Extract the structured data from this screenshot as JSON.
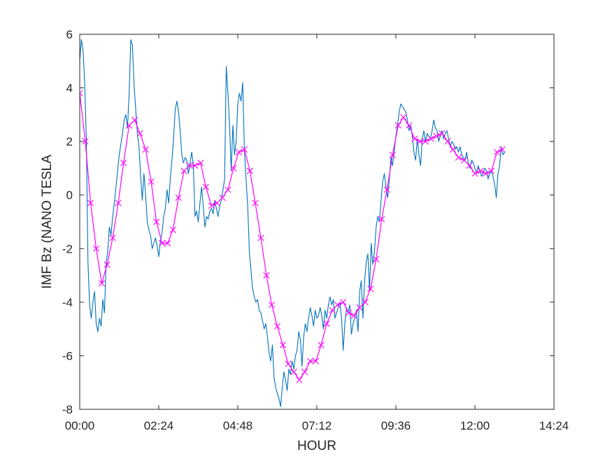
{
  "chart_data": {
    "type": "line",
    "xlabel": "HOUR",
    "ylabel": "IMF Bz (NANO TESLA",
    "x_ticks": [
      "00:00",
      "02:24",
      "04:48",
      "07:12",
      "09:36",
      "12:00",
      "14:24"
    ],
    "y_ticks": [
      "6",
      "4",
      "2",
      "0",
      "-2",
      "-4",
      "-6",
      "-8"
    ],
    "xlim_hours": [
      0,
      14.4
    ],
    "ylim": [
      -8,
      6
    ],
    "grid": false,
    "series": [
      {
        "color": "#0072BD",
        "marker": "none",
        "x_hours": [
          0.0,
          0.05,
          0.1,
          0.15,
          0.2,
          0.25,
          0.3,
          0.35,
          0.4,
          0.45,
          0.5,
          0.55,
          0.6,
          0.65,
          0.7,
          0.75,
          0.8,
          0.85,
          0.9,
          0.95,
          1.0,
          1.05,
          1.1,
          1.15,
          1.2,
          1.25,
          1.3,
          1.35,
          1.4,
          1.45,
          1.5,
          1.55,
          1.6,
          1.65,
          1.7,
          1.75,
          1.8,
          1.85,
          1.9,
          1.95,
          2.0,
          2.05,
          2.1,
          2.15,
          2.2,
          2.25,
          2.3,
          2.35,
          2.4,
          2.45,
          2.5,
          2.55,
          2.6,
          2.65,
          2.7,
          2.75,
          2.8,
          2.85,
          2.9,
          2.95,
          3.0,
          3.05,
          3.1,
          3.15,
          3.2,
          3.25,
          3.3,
          3.35,
          3.4,
          3.45,
          3.5,
          3.55,
          3.6,
          3.65,
          3.7,
          3.75,
          3.8,
          3.85,
          3.9,
          3.95,
          4.0,
          4.05,
          4.1,
          4.15,
          4.2,
          4.25,
          4.3,
          4.35,
          4.4,
          4.45,
          4.5,
          4.55,
          4.6,
          4.65,
          4.7,
          4.75,
          4.8,
          4.85,
          4.9,
          4.95,
          5.0,
          5.05,
          5.1,
          5.15,
          5.2,
          5.25,
          5.3,
          5.35,
          5.4,
          5.45,
          5.5,
          5.55,
          5.6,
          5.65,
          5.7,
          5.75,
          5.8,
          5.85,
          5.9,
          5.95,
          6.0,
          6.05,
          6.1,
          6.15,
          6.2,
          6.25,
          6.3,
          6.35,
          6.4,
          6.45,
          6.5,
          6.55,
          6.6,
          6.65,
          6.7,
          6.75,
          6.8,
          6.85,
          6.9,
          6.95,
          7.0,
          7.05,
          7.1,
          7.15,
          7.2,
          7.25,
          7.3,
          7.35,
          7.4,
          7.45,
          7.5,
          7.55,
          7.6,
          7.65,
          7.7,
          7.75,
          7.8,
          7.85,
          7.9,
          7.95,
          8.0,
          8.05,
          8.1,
          8.15,
          8.2,
          8.25,
          8.3,
          8.35,
          8.4,
          8.45,
          8.5,
          8.55,
          8.6,
          8.65,
          8.7,
          8.75,
          8.8,
          8.85,
          8.9,
          8.95,
          9.0,
          9.05,
          9.1,
          9.15,
          9.2,
          9.25,
          9.3,
          9.35,
          9.4,
          9.45,
          9.5,
          9.55,
          9.6,
          9.65,
          9.7,
          9.75,
          9.8,
          9.85,
          9.9,
          9.95,
          10.0,
          10.05,
          10.1,
          10.15,
          10.2,
          10.25,
          10.3,
          10.35,
          10.4,
          10.45,
          10.5,
          10.55,
          10.6,
          10.65,
          10.7,
          10.75,
          10.8,
          10.85,
          10.9,
          10.95,
          11.0,
          11.05,
          11.1,
          11.15,
          11.2,
          11.25,
          11.3,
          11.35,
          11.4,
          11.45,
          11.5,
          11.55,
          11.6,
          11.65,
          11.7,
          11.75,
          11.8,
          11.85,
          11.9,
          11.95,
          12.0,
          12.05,
          12.1,
          12.15,
          12.2,
          12.25,
          12.3,
          12.35,
          12.4,
          12.45,
          12.5,
          12.55,
          12.6,
          12.65,
          12.7,
          12.75,
          12.8,
          12.85,
          12.9
        ],
        "y": [
          5.0,
          5.8,
          5.4,
          4.2,
          2.1,
          -2.5,
          -4.1,
          -4.6,
          -4.0,
          -3.6,
          -4.8,
          -5.1,
          -4.6,
          -4.9,
          -3.9,
          -4.4,
          -2.6,
          -2.1,
          -1.2,
          -1.5,
          -0.8,
          -0.3,
          0.3,
          0.9,
          1.5,
          1.9,
          2.3,
          2.8,
          3.0,
          2.5,
          3.8,
          5.8,
          5.6,
          4.1,
          3.2,
          2.3,
          1.8,
          0.7,
          -0.2,
          0.8,
          0.0,
          -1.0,
          -1.3,
          -1.5,
          -2.0,
          -1.8,
          -1.6,
          -1.9,
          -2.3,
          -1.7,
          -1.4,
          -0.8,
          -0.5,
          0.2,
          -0.3,
          0.6,
          1.3,
          2.1,
          3.2,
          3.5,
          3.1,
          2.4,
          1.5,
          1.2,
          1.4,
          1.3,
          0.8,
          1.2,
          1.6,
          1.1,
          -0.8,
          -0.6,
          -1.0,
          -0.3,
          0.3,
          -0.4,
          -1.2,
          -0.8,
          -0.9,
          -0.6,
          -0.5,
          -0.7,
          -0.2,
          -0.5,
          -0.8,
          -0.4,
          -0.2,
          0.2,
          0.6,
          4.8,
          3.8,
          2.6,
          0.9,
          2.6,
          1.5,
          2.0,
          3.4,
          3.8,
          3.5,
          4.2,
          1.7,
          0.6,
          -0.4,
          -2.1,
          -2.8,
          -3.5,
          -3.8,
          -4.0,
          -3.9,
          -4.3,
          -4.4,
          -4.7,
          -5.0,
          -4.8,
          -5.3,
          -5.9,
          -6.2,
          -5.6,
          -6.8,
          -7.2,
          -7.4,
          -7.6,
          -7.9,
          -7.2,
          -6.6,
          -6.9,
          -7.3,
          -6.5,
          -6.7,
          -6.2,
          -6.5,
          -6.0,
          -5.8,
          -5.1,
          -5.4,
          -6.4,
          -5.3,
          -4.8,
          -5.1,
          -4.6,
          -4.2,
          -4.5,
          -4.9,
          -4.3,
          -4.6,
          -4.5,
          -4.2,
          -4.5,
          -5.0,
          -4.3,
          -4.6,
          -4.1,
          -3.8,
          -4.1,
          -3.9,
          -4.6,
          -4.4,
          -4.2,
          -4.0,
          -4.6,
          -5.8,
          -4.8,
          -4.2,
          -4.4,
          -4.1,
          -5.2,
          -4.8,
          -4.6,
          -4.3,
          -5.1,
          -3.6,
          -3.2,
          -4.6,
          -3.2,
          -2.5,
          -2.2,
          -3.6,
          -1.8,
          -2.6,
          -2.1,
          -1.2,
          -0.8,
          -1.0,
          -0.2,
          0.5,
          0.8,
          0.3,
          -0.1,
          0.6,
          1.4,
          1.1,
          1.6,
          2.2,
          2.6,
          3.1,
          3.4,
          3.3,
          3.2,
          3.1,
          2.8,
          2.4,
          2.6,
          2.2,
          1.6,
          1.3,
          2.1,
          1.5,
          1.1,
          2.1,
          2.4,
          2.0,
          2.3,
          2.2,
          2.1,
          2.4,
          2.8,
          2.5,
          2.4,
          2.0,
          2.2,
          2.4,
          2.1,
          2.3,
          2.4,
          2.1,
          1.8,
          2.0,
          1.9,
          1.7,
          1.8,
          1.6,
          1.8,
          1.5,
          1.4,
          1.3,
          1.6,
          1.2,
          1.0,
          1.3,
          1.2,
          1.0,
          0.8,
          1.1,
          0.9,
          0.7,
          0.8,
          1.0,
          0.9,
          0.6,
          0.8,
          0.9,
          0.7,
          0.4,
          -0.1,
          0.8,
          1.1,
          1.8,
          1.5,
          1.6
        ],
        "name": ""
      },
      {
        "color": "#FF00FF",
        "marker": "x",
        "x_hours": [
          0.0,
          0.17,
          0.33,
          0.5,
          0.67,
          0.83,
          1.0,
          1.17,
          1.33,
          1.5,
          1.67,
          1.83,
          2.0,
          2.17,
          2.33,
          2.5,
          2.67,
          2.83,
          3.0,
          3.17,
          3.33,
          3.5,
          3.67,
          3.83,
          4.0,
          4.17,
          4.33,
          4.5,
          4.67,
          4.83,
          5.0,
          5.17,
          5.33,
          5.5,
          5.67,
          5.83,
          6.0,
          6.17,
          6.33,
          6.5,
          6.67,
          6.83,
          7.0,
          7.17,
          7.33,
          7.5,
          7.67,
          7.83,
          8.0,
          8.17,
          8.33,
          8.5,
          8.67,
          8.83,
          9.0,
          9.17,
          9.33,
          9.5,
          9.67,
          9.83,
          10.0,
          10.17,
          10.33,
          10.5,
          10.67,
          10.83,
          11.0,
          11.17,
          11.33,
          11.5,
          11.67,
          11.83,
          12.0,
          12.17,
          12.33,
          12.5,
          12.67,
          12.83
        ],
        "y": [
          3.8,
          2.0,
          -0.3,
          -2.0,
          -3.3,
          -2.6,
          -1.6,
          -0.3,
          1.2,
          2.6,
          2.8,
          2.3,
          1.7,
          0.5,
          -1.0,
          -1.8,
          -1.8,
          -1.3,
          -0.1,
          0.9,
          1.1,
          1.1,
          1.2,
          0.3,
          -0.4,
          -0.3,
          -0.1,
          0.2,
          1.0,
          1.6,
          1.7,
          0.9,
          -0.3,
          -1.6,
          -3.0,
          -4.1,
          -4.9,
          -5.6,
          -6.3,
          -6.6,
          -6.9,
          -6.6,
          -6.2,
          -6.2,
          -5.6,
          -4.8,
          -4.3,
          -4.1,
          -4.0,
          -4.4,
          -4.5,
          -4.2,
          -4.0,
          -3.5,
          -2.4,
          -0.9,
          0.2,
          1.5,
          2.6,
          2.9,
          2.6,
          2.1,
          2.0,
          2.0,
          2.1,
          2.2,
          2.3,
          2.0,
          1.7,
          1.4,
          1.3,
          1.1,
          0.8,
          0.9,
          0.8,
          0.9,
          1.6,
          1.7
        ],
        "name": ""
      }
    ]
  }
}
